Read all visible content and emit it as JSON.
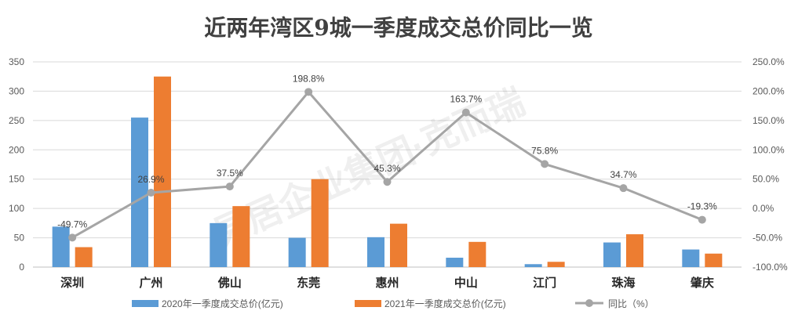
{
  "chart_data": {
    "type": "bar",
    "title": "近两年湾区9城一季度成交总价同比一览",
    "categories": [
      "深圳",
      "广州",
      "佛山",
      "东莞",
      "惠州",
      "中山",
      "江门",
      "珠海",
      "肇庆"
    ],
    "series": [
      {
        "name": "2020年一季度成交总价(亿元)",
        "type": "bar",
        "axis": "left",
        "color": "#5b9bd5",
        "values": [
          69,
          255,
          75,
          50,
          51,
          16,
          5,
          42,
          30
        ]
      },
      {
        "name": "2021年一季度成交总价(亿元)",
        "type": "bar",
        "axis": "left",
        "color": "#ed7d31",
        "values": [
          34,
          325,
          104,
          150,
          74,
          43,
          9,
          56,
          23
        ]
      },
      {
        "name": "同比（%）",
        "type": "line",
        "axis": "right",
        "color": "#a5a5a5",
        "values": [
          -49.7,
          26.9,
          37.5,
          198.8,
          45.3,
          163.7,
          75.8,
          34.7,
          -19.3
        ],
        "labels": [
          "-49.7%",
          "26.9%",
          "37.5%",
          "198.8%",
          "45.3%",
          "163.7%",
          "75.8%",
          "34.7%",
          "-19.3%"
        ]
      }
    ],
    "left_axis": {
      "min": 0,
      "max": 350,
      "step": 50,
      "ticks": [
        "0",
        "50",
        "100",
        "150",
        "200",
        "250",
        "300",
        "350"
      ]
    },
    "right_axis": {
      "min": -100,
      "max": 250,
      "step": 50,
      "ticks": [
        "-100.0%",
        "-50.0%",
        "0.0%",
        "50.0%",
        "100.0%",
        "150.0%",
        "200.0%",
        "250.0%"
      ]
    },
    "grid": true,
    "legend_position": "bottom",
    "watermark": "易居企业集团·克而瑞"
  }
}
